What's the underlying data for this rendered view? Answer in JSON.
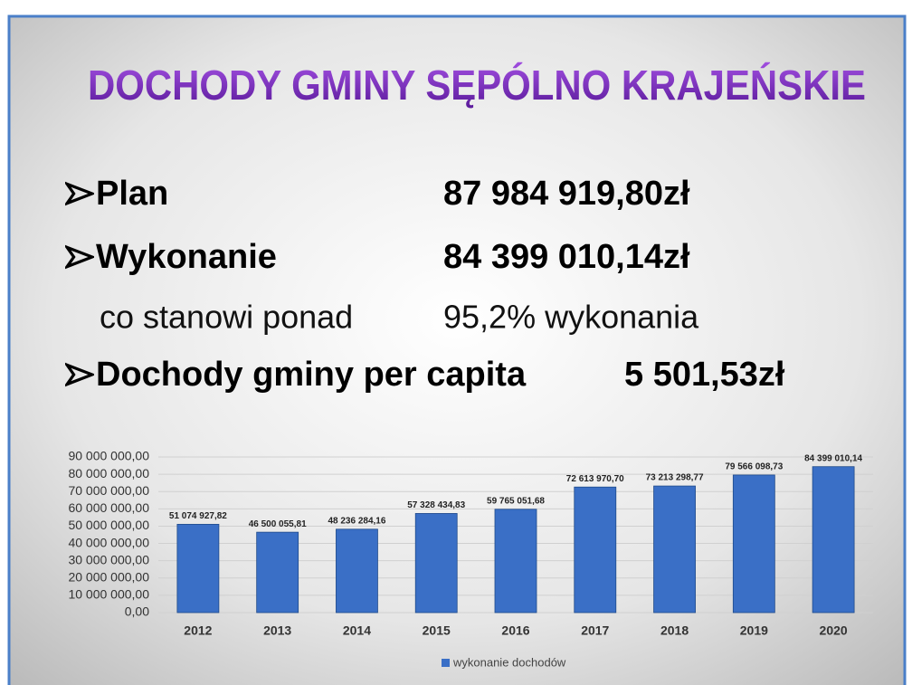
{
  "slide": {
    "title": "DOCHODY GMINY SĘPÓLNO KRAJEŃSKIE",
    "items": [
      {
        "label": "Plan",
        "value": "87 984 919,80zł"
      },
      {
        "label": "Wykonanie",
        "value": "84 399 010,14zł"
      },
      {
        "label": "co stanowi ponad",
        "value": "95,2% wykonania"
      },
      {
        "label": "Dochody gminy per capita",
        "value": "5 501,53zł"
      }
    ]
  },
  "chart_data": {
    "type": "bar",
    "categories": [
      "2012",
      "2013",
      "2014",
      "2015",
      "2016",
      "2017",
      "2018",
      "2019",
      "2020"
    ],
    "series": [
      {
        "name": "wykonanie dochodów",
        "color": "#3a6fc6",
        "values": [
          51074927.82,
          46500055.81,
          48236284.16,
          57328434.83,
          59765051.68,
          72613970.7,
          73213298.77,
          79566098.73,
          84399010.14
        ],
        "value_labels": [
          "51 074 927,82",
          "46 500 055,81",
          "48 236 284,16",
          "57 328 434,83",
          "59 765 051,68",
          "72 613 970,70",
          "73 213 298,77",
          "79 566 098,73",
          "84 399 010,14"
        ]
      }
    ],
    "ylim": [
      0,
      90000000
    ],
    "yticks": [
      {
        "value": 0,
        "label": "0,00"
      },
      {
        "value": 10000000,
        "label": "10 000 000,00"
      },
      {
        "value": 20000000,
        "label": "20 000 000,00"
      },
      {
        "value": 30000000,
        "label": "30 000 000,00"
      },
      {
        "value": 40000000,
        "label": "40 000 000,00"
      },
      {
        "value": 50000000,
        "label": "50 000 000,00"
      },
      {
        "value": 60000000,
        "label": "60 000 000,00"
      },
      {
        "value": 70000000,
        "label": "70 000 000,00"
      },
      {
        "value": 80000000,
        "label": "80 000 000,00"
      },
      {
        "value": 90000000,
        "label": "90 000 000,00"
      }
    ],
    "grid": true,
    "legend": "bottom"
  }
}
